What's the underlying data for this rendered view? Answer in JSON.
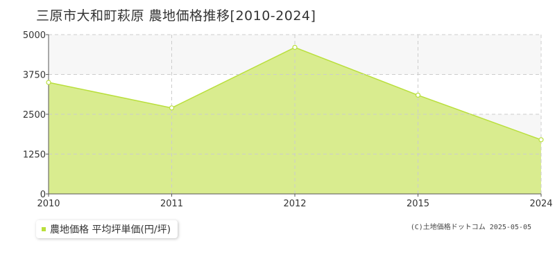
{
  "chart_data": {
    "type": "area",
    "title": "三原市大和町萩原 農地価格推移[2010-2024]",
    "x": [
      "2010",
      "2011",
      "2012",
      "2015",
      "2024"
    ],
    "series": [
      {
        "name": "農地価格 平均坪単価(円/坪)",
        "values": [
          3500,
          2700,
          4600,
          3100,
          1700
        ]
      }
    ],
    "yticks": [
      "0",
      "1250",
      "2500",
      "3750",
      "5000"
    ],
    "ylim": [
      0,
      5000
    ],
    "grid": true,
    "legend_position": "bottom-left"
  },
  "colors": {
    "fill": "#d9ec8f",
    "line": "#b9df3c",
    "marker": "#ffffff",
    "grid": "#cccccc",
    "band": "#f7f7f7",
    "legend_swatch": "#b9df3c"
  },
  "legend": {
    "label": "農地価格 平均坪単価(円/坪)"
  },
  "copyright": "(C)土地価格ドットコム 2025-05-05"
}
